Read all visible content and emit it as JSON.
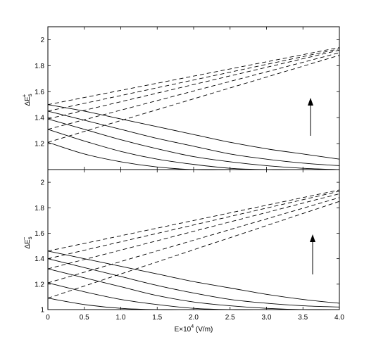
{
  "chart_data": [
    {
      "type": "line",
      "panel": "top",
      "ylabel": "ΔE_s^+",
      "xlim": [
        0,
        4.0
      ],
      "ylim": [
        1.0,
        2.1
      ],
      "yticks": [
        1.2,
        1.4,
        1.6,
        1.8,
        2
      ],
      "ytick_labels": [
        "1.2",
        "1.4",
        "1.6",
        "1.8",
        "2"
      ],
      "grid": false,
      "annotation": "arrow pointing up",
      "series": [
        {
          "style": "solid",
          "x": [
            0,
            0.5,
            1,
            1.5,
            2,
            2.5,
            3,
            3.5,
            4
          ],
          "y": [
            1.5,
            1.45,
            1.39,
            1.33,
            1.27,
            1.21,
            1.16,
            1.12,
            1.08
          ]
        },
        {
          "style": "solid",
          "x": [
            0,
            0.5,
            1,
            1.5,
            2,
            2.5,
            3,
            3.5,
            4
          ],
          "y": [
            1.45,
            1.38,
            1.31,
            1.24,
            1.18,
            1.12,
            1.08,
            1.05,
            1.03
          ]
        },
        {
          "style": "solid",
          "x": [
            0,
            0.5,
            1,
            1.5,
            2,
            2.5,
            3,
            3.5,
            4
          ],
          "y": [
            1.39,
            1.31,
            1.23,
            1.16,
            1.1,
            1.06,
            1.03,
            1.01,
            1.0
          ]
        },
        {
          "style": "solid",
          "x": [
            0,
            0.5,
            1,
            1.5,
            2,
            2.5,
            3,
            3.5,
            4
          ],
          "y": [
            1.31,
            1.22,
            1.14,
            1.08,
            1.04,
            1.01,
            1.0,
            1.0,
            1.0
          ]
        },
        {
          "style": "solid",
          "x": [
            0,
            0.5,
            1,
            1.5,
            2,
            2.5,
            3,
            3.5,
            4
          ],
          "y": [
            1.21,
            1.12,
            1.06,
            1.02,
            1.0,
            1.0,
            1.0,
            1.0,
            1.0
          ]
        },
        {
          "style": "dashed",
          "x": [
            0,
            4
          ],
          "y": [
            1.5,
            1.94
          ]
        },
        {
          "style": "dashed",
          "x": [
            0,
            4
          ],
          "y": [
            1.45,
            1.93
          ]
        },
        {
          "style": "dashed",
          "x": [
            0,
            4
          ],
          "y": [
            1.39,
            1.92
          ]
        },
        {
          "style": "dashed",
          "x": [
            0,
            4
          ],
          "y": [
            1.31,
            1.9
          ]
        },
        {
          "style": "dashed",
          "x": [
            0,
            4
          ],
          "y": [
            1.21,
            1.88
          ]
        }
      ]
    },
    {
      "type": "line",
      "panel": "bottom",
      "ylabel": "ΔE_s^-",
      "xlabel": "E×10^4 (V/m)",
      "xlim": [
        0,
        4.0
      ],
      "ylim": [
        1.0,
        2.1
      ],
      "xticks": [
        0,
        0.5,
        1,
        1.5,
        2,
        2.5,
        3,
        3.5,
        4
      ],
      "xtick_labels": [
        "0",
        "0.5",
        "1.0",
        "1.5",
        "2.0",
        "2.5",
        "3.0",
        "3.5",
        "4.0"
      ],
      "yticks": [
        1,
        1.2,
        1.4,
        1.6,
        1.8,
        2
      ],
      "ytick_labels": [
        "1",
        "1.2",
        "1.4",
        "1.6",
        "1.8",
        "2"
      ],
      "grid": false,
      "annotation": "arrow pointing up",
      "series": [
        {
          "style": "solid",
          "x": [
            0,
            0.5,
            1,
            1.5,
            2,
            2.5,
            3,
            3.5,
            4
          ],
          "y": [
            1.46,
            1.4,
            1.34,
            1.28,
            1.22,
            1.17,
            1.12,
            1.08,
            1.05
          ]
        },
        {
          "style": "solid",
          "x": [
            0,
            0.5,
            1,
            1.5,
            2,
            2.5,
            3,
            3.5,
            4
          ],
          "y": [
            1.4,
            1.33,
            1.26,
            1.19,
            1.13,
            1.08,
            1.05,
            1.03,
            1.02
          ]
        },
        {
          "style": "solid",
          "x": [
            0,
            0.5,
            1,
            1.5,
            2,
            2.5,
            3,
            3.5,
            4
          ],
          "y": [
            1.32,
            1.25,
            1.18,
            1.11,
            1.06,
            1.03,
            1.01,
            1.0,
            1.0
          ]
        },
        {
          "style": "solid",
          "x": [
            0,
            0.5,
            1,
            1.5,
            2,
            2.5,
            3,
            3.5,
            4
          ],
          "y": [
            1.21,
            1.14,
            1.08,
            1.04,
            1.01,
            1.0,
            1.0,
            1.0,
            1.0
          ]
        },
        {
          "style": "solid",
          "x": [
            0,
            0.5,
            1,
            1.5,
            2,
            2.5,
            3,
            3.5,
            4
          ],
          "y": [
            1.09,
            1.04,
            1.01,
            1.0,
            1.0,
            1.0,
            1.0,
            1.0,
            1.0
          ]
        },
        {
          "style": "dashed",
          "x": [
            0,
            4
          ],
          "y": [
            1.46,
            1.94
          ]
        },
        {
          "style": "dashed",
          "x": [
            0,
            4
          ],
          "y": [
            1.4,
            1.93
          ]
        },
        {
          "style": "dashed",
          "x": [
            0,
            4
          ],
          "y": [
            1.32,
            1.91
          ]
        },
        {
          "style": "dashed",
          "x": [
            0,
            4
          ],
          "y": [
            1.21,
            1.88
          ]
        },
        {
          "style": "dashed",
          "x": [
            0,
            4
          ],
          "y": [
            1.09,
            1.85
          ]
        }
      ]
    }
  ]
}
